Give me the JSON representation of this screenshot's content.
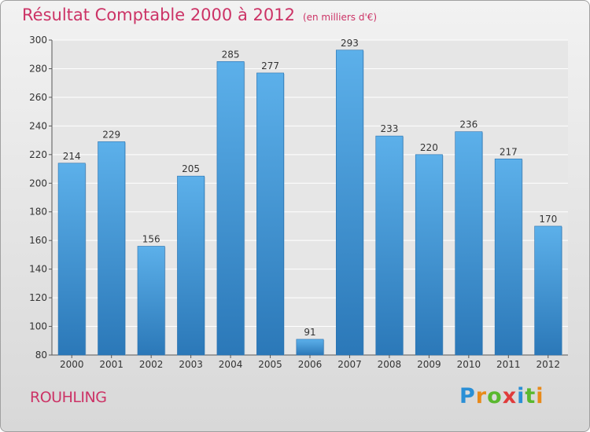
{
  "chart_data": {
    "type": "bar",
    "title": "Résultat Comptable 2000 à 2012",
    "subtitle": "(en milliers d'€)",
    "categories": [
      "2000",
      "2001",
      "2002",
      "2003",
      "2004",
      "2005",
      "2006",
      "2007",
      "2008",
      "2009",
      "2010",
      "2011",
      "2012"
    ],
    "values": [
      214,
      229,
      156,
      205,
      285,
      277,
      91,
      293,
      233,
      220,
      236,
      217,
      170
    ],
    "ylim": [
      80,
      300
    ],
    "yticks": [
      80,
      100,
      120,
      140,
      160,
      180,
      200,
      220,
      240,
      260,
      280,
      300
    ],
    "xlabel": "",
    "ylabel": "",
    "grid": true,
    "bar_color": "#4a9fdf"
  },
  "footer": {
    "town": "ROUHLING",
    "logo_letters": [
      {
        "ch": "P",
        "color": "#2a8fd6"
      },
      {
        "ch": "r",
        "color": "#e88a1a"
      },
      {
        "ch": "o",
        "color": "#5ab82f"
      },
      {
        "ch": "x",
        "color": "#e03b3b"
      },
      {
        "ch": "i",
        "color": "#2a8fd6"
      },
      {
        "ch": "t",
        "color": "#5ab82f"
      },
      {
        "ch": "i",
        "color": "#e88a1a"
      }
    ]
  }
}
